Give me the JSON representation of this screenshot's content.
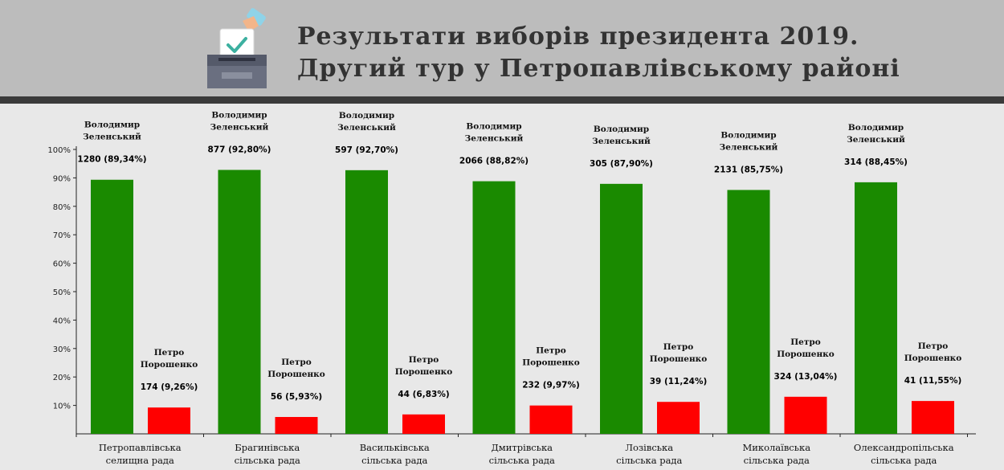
{
  "header": {
    "title_line1": "Результати виборів президента 2019.",
    "title_line2": "Другий тур у Петропавлівському районі",
    "icon": "ballot-box-icon"
  },
  "chart_data": {
    "type": "bar",
    "ylim": [
      0,
      100
    ],
    "yticks": [
      "10%",
      "20%",
      "30%",
      "40%",
      "50%",
      "60%",
      "70%",
      "80%",
      "90%",
      "100%"
    ],
    "categories": [
      [
        "Петропавлівська",
        "селищна  рада"
      ],
      [
        "Брагинівська",
        "сільська  рада"
      ],
      [
        "Васильківська",
        "сільська  рада"
      ],
      [
        "Дмитрівська",
        "сільська  рада"
      ],
      [
        "Лозівська",
        "сільська  рада"
      ],
      [
        "Миколаївська",
        "сільська  рада"
      ],
      [
        "Олександропільська",
        "сільська  рада"
      ]
    ],
    "series": [
      {
        "name": "Володимир Зеленський",
        "name_lines": [
          "Володимир",
          "Зеленський"
        ],
        "color": "#1a8a00",
        "values": [
          89.34,
          92.8,
          92.7,
          88.82,
          87.9,
          85.75,
          88.45
        ],
        "labels": [
          "1280  (89,34%)",
          "877  (92,80%)",
          "597  (92,70%)",
          "2066  (88,82%)",
          "305  (87,90%)",
          "2131  (85,75%)",
          "314  (88,45%)"
        ]
      },
      {
        "name": "Петро Порошенко",
        "name_lines": [
          "Петро",
          "Порошенко"
        ],
        "color": "#ff0000",
        "values": [
          9.26,
          5.93,
          6.83,
          9.97,
          11.24,
          13.04,
          11.55
        ],
        "labels": [
          "174  (9,26%)",
          "56  (5,93%)",
          "44  (6,83%)",
          "232  (9,97%)",
          "39  (11,24%)",
          "324  (13,04%)",
          "41  (11,55%)"
        ]
      }
    ]
  }
}
